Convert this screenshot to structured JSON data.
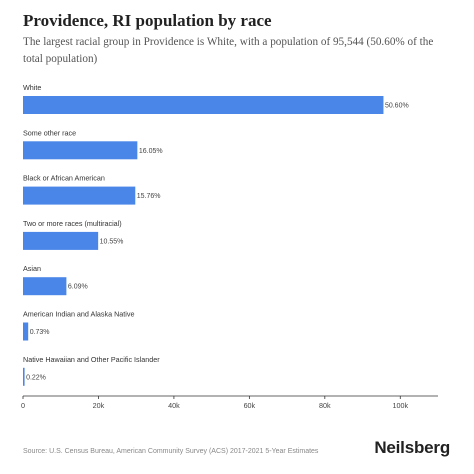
{
  "header": {
    "title": "Providence, RI population by race",
    "subtitle": "The largest racial group in Providence is White, with a population of 95,544 (50.60% of the total population)"
  },
  "footer": {
    "source": "Source: U.S. Census Bureau, American Community Survey (ACS) 2017-2021 5-Year Estimates",
    "brand": "Neilsberg"
  },
  "chart_data": {
    "type": "bar",
    "orientation": "horizontal",
    "categories": [
      "White",
      "Some other race",
      "Black or African American",
      "Two or more races (multiracial)",
      "Asian",
      "American Indian and Alaska Native",
      "Native Hawaiian and Other Pacific Islander"
    ],
    "values": [
      95544,
      30310,
      29760,
      19920,
      11500,
      1378,
      415
    ],
    "value_labels": [
      "50.60%",
      "16.05%",
      "15.76%",
      "10.55%",
      "6.09%",
      "0.73%",
      "0.22%"
    ],
    "xlim": [
      0,
      110000
    ],
    "x_ticks": [
      0,
      20000,
      40000,
      60000,
      80000,
      100000
    ],
    "x_tick_labels": [
      "0",
      "20k",
      "40k",
      "60k",
      "80k",
      "100k"
    ],
    "grid": false,
    "bar_color": "#4a86e8"
  }
}
